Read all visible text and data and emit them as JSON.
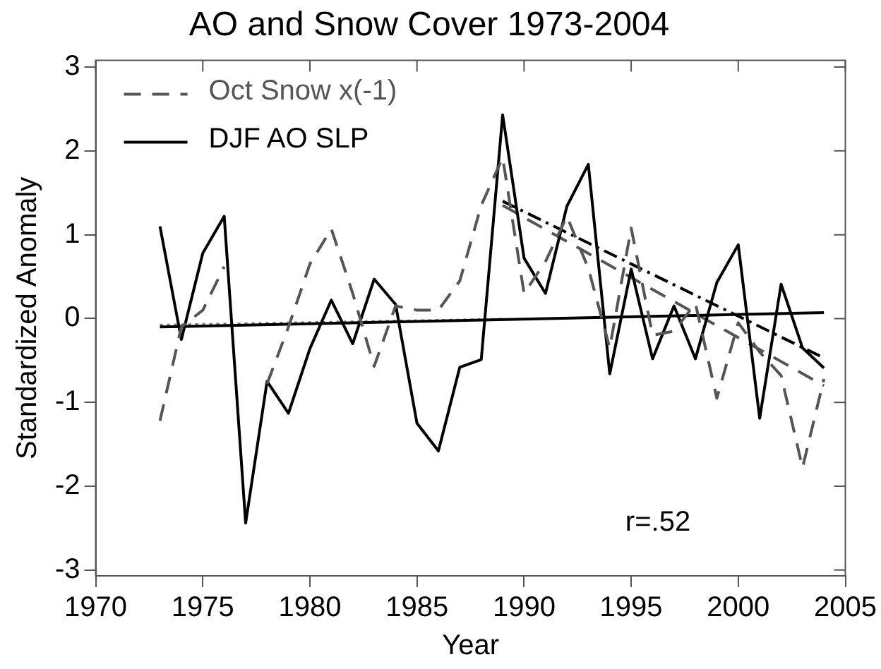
{
  "chart_data": {
    "type": "line",
    "title": "AO and Snow Cover 1973-2004",
    "xlabel": "Year",
    "ylabel": "Standardized Anomaly",
    "x": [
      1973,
      1974,
      1975,
      1976,
      1977,
      1978,
      1979,
      1980,
      1981,
      1982,
      1983,
      1984,
      1985,
      1986,
      1987,
      1988,
      1989,
      1990,
      1991,
      1992,
      1993,
      1994,
      1995,
      1996,
      1997,
      1998,
      1999,
      2000,
      2001,
      2002,
      2003,
      2004
    ],
    "xlim": [
      1970,
      2005
    ],
    "xticks": [
      1970,
      1975,
      1980,
      1985,
      1990,
      1995,
      2000,
      2005
    ],
    "ylim": [
      -3.07,
      3.08
    ],
    "yticks": [
      -3,
      -2,
      -1,
      0,
      1,
      2,
      3
    ],
    "legend": "top left",
    "grid": false,
    "marker": "none",
    "annotations": [
      "r=.52"
    ],
    "series": [
      {
        "name": "Oct Snow x(-1)",
        "color": "#555555",
        "line_style": "dashed",
        "values": [
          -1.22,
          -0.1,
          0.1,
          0.62,
          null,
          -0.78,
          -0.1,
          0.65,
          1.07,
          0.3,
          -0.57,
          0.15,
          0.1,
          0.1,
          0.45,
          1.35,
          1.92,
          0.3,
          0.68,
          1.22,
          0.6,
          -0.35,
          1.08,
          -0.2,
          -0.15,
          0.18,
          -0.95,
          -0.05,
          -0.4,
          -0.68,
          -1.78,
          -0.72
        ]
      },
      {
        "name": "DJF AO SLP",
        "color": "#000000",
        "line_style": "solid",
        "values": [
          1.1,
          -0.25,
          0.78,
          1.22,
          -2.44,
          -0.75,
          -1.13,
          -0.36,
          0.22,
          -0.3,
          0.47,
          0.17,
          -1.25,
          -1.58,
          -0.58,
          -0.49,
          2.43,
          0.72,
          0.3,
          1.34,
          1.84,
          -0.66,
          0.59,
          -0.48,
          0.15,
          -0.48,
          0.43,
          0.88,
          -1.19,
          0.41,
          -0.35,
          -0.59
        ]
      },
      {
        "type": "line",
        "color": "#000000",
        "line_style": "solid",
        "x": [
          1973,
          2004
        ],
        "values": [
          -0.1,
          0.07
        ]
      },
      {
        "type": "line",
        "color": "#777777",
        "line_style": "dotted",
        "x": [
          1973,
          1989
        ],
        "values": [
          -0.08,
          -0.01
        ]
      },
      {
        "type": "line",
        "color": "#000000",
        "line_style": "dashdot",
        "x": [
          1989,
          2004
        ],
        "values": [
          1.4,
          -0.47
        ]
      },
      {
        "type": "line",
        "color": "#555555",
        "line_style": "dashed",
        "x": [
          1989,
          2004
        ],
        "values": [
          1.35,
          -0.8
        ]
      }
    ]
  }
}
